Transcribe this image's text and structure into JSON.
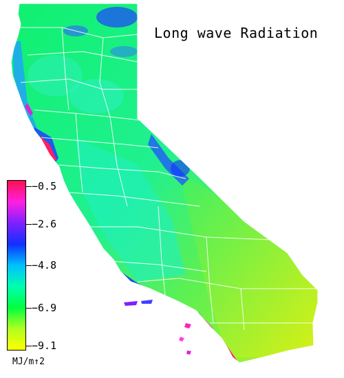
{
  "title": "Long wave Radiation",
  "legend": {
    "units": "MJ/m↑2",
    "ticks": [
      "−0.5",
      "−2.6",
      "−4.8",
      "−6.9",
      "−9.1"
    ],
    "min": -9.1,
    "max": -0.5,
    "colors": [
      "#ff1050",
      "#ff20e0",
      "#8020ff",
      "#1030ff",
      "#00c0ff",
      "#00ffb0",
      "#00ff40",
      "#b0ff20",
      "#ffff00"
    ]
  }
}
